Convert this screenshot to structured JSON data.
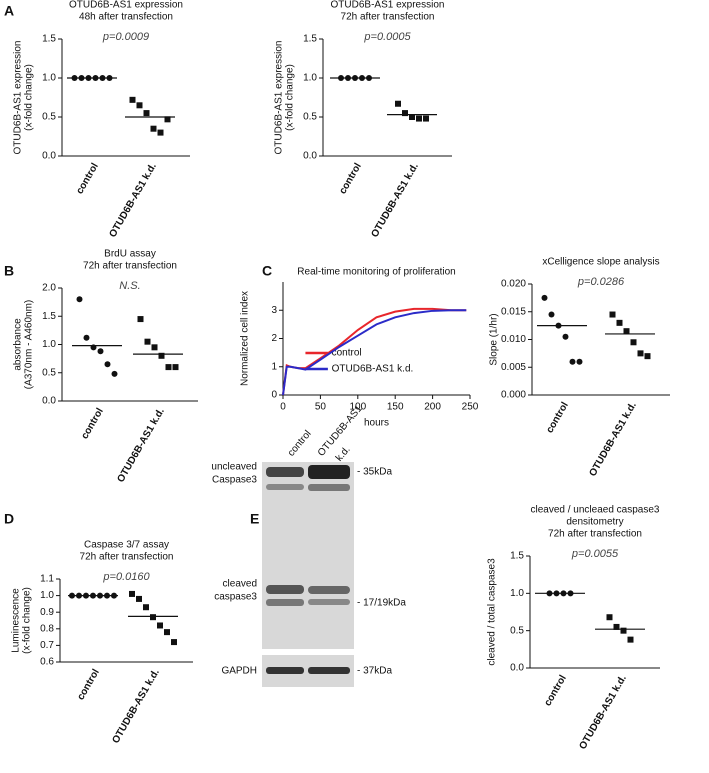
{
  "panel_labels": [
    "A",
    "B",
    "C",
    "D",
    "E"
  ],
  "blot": {
    "lanes": [
      "control",
      "OTUD6B-AS1",
      "k.d."
    ],
    "rows": [
      "uncleaved",
      "Caspase3",
      "cleaved",
      "caspase3",
      "GAPDH"
    ],
    "sizes": [
      "- 35kDa",
      "- 17/19kDa",
      "- 37kDa"
    ]
  },
  "chart_data": [
    {
      "type": "dotplot",
      "title": "OTUD6B-AS1 expression",
      "subtitle": "48h after transfection",
      "ylabel": [
        "OTUD6B-AS1 expression",
        "(x-fold change)"
      ],
      "annotation": "p=0.0009",
      "categories": [
        "control",
        "OTUD6B-AS1 k.d."
      ],
      "markers": [
        "circle",
        "square"
      ],
      "points": [
        [
          1,
          1,
          1,
          1,
          1,
          1
        ],
        [
          0.72,
          0.65,
          0.55,
          0.35,
          0.3,
          0.47
        ]
      ],
      "means": [
        1.0,
        0.5
      ],
      "ylim": [
        0,
        1.5
      ],
      "yticks": [
        {
          "value": 0,
          "label": "0.0"
        },
        0.5,
        {
          "value": 1,
          "label": "1.0"
        },
        1.5
      ]
    },
    {
      "type": "dotplot",
      "title": "OTUD6B-AS1 expression",
      "subtitle": "72h after transfection",
      "ylabel": [
        "OTUD6B-AS1 expression",
        "(x-fold change)"
      ],
      "annotation": "p=0.0005",
      "categories": [
        "control",
        "OTUD6B-AS1 k.d."
      ],
      "markers": [
        "circle",
        "square"
      ],
      "points": [
        [
          1,
          1,
          1,
          1,
          1
        ],
        [
          0.67,
          0.55,
          0.5,
          0.48,
          0.48
        ]
      ],
      "means": [
        1.0,
        0.53
      ],
      "ylim": [
        0,
        1.5
      ],
      "yticks": [
        {
          "value": 0,
          "label": "0.0"
        },
        0.5,
        {
          "value": 1,
          "label": "1.0"
        },
        1.5
      ]
    },
    {
      "type": "dotplot",
      "title": "BrdU assay",
      "subtitle": "72h after transfection",
      "ylabel": [
        "absorbance",
        "(A370nm - A460nm)"
      ],
      "annotation": "N.S.",
      "categories": [
        "control",
        "OTUD6B-AS1 k.d."
      ],
      "markers": [
        "circle",
        "square"
      ],
      "points": [
        [
          1.8,
          1.12,
          0.95,
          0.88,
          0.65,
          0.48
        ],
        [
          1.45,
          1.05,
          0.95,
          0.8,
          0.6,
          0.6
        ]
      ],
      "means": [
        0.98,
        0.83
      ],
      "ylim": [
        0,
        2
      ],
      "yticks": [
        {
          "value": 0,
          "label": "0.0"
        },
        0.5,
        {
          "value": 1,
          "label": "1.0"
        },
        1.5,
        {
          "value": 2,
          "label": "2.0"
        }
      ]
    },
    {
      "type": "line",
      "title": "Real-time monitoring of proliferation",
      "xlabel": "hours",
      "ylabel": [
        "Normalized cell index"
      ],
      "x": [
        0,
        5,
        10,
        20,
        30,
        50,
        75,
        100,
        125,
        150,
        175,
        200,
        225,
        245
      ],
      "series": [
        {
          "name": "control",
          "color": "#e8262b",
          "values": [
            0,
            1.05,
            1.0,
            0.95,
            0.95,
            1.3,
            1.75,
            2.3,
            2.75,
            2.95,
            3.05,
            3.05,
            3.0,
            3.0
          ]
        },
        {
          "name": "OTUD6B-AS1 k.d.",
          "color": "#2b2bc8",
          "values": [
            0,
            1.0,
            1.0,
            0.95,
            0.9,
            1.25,
            1.7,
            2.1,
            2.5,
            2.75,
            2.9,
            2.98,
            3.0,
            3.0
          ]
        }
      ],
      "xlim": [
        0,
        250
      ],
      "xticks": [
        0,
        50,
        100,
        150,
        200,
        250
      ],
      "ylim": [
        0,
        4
      ],
      "yticks": [
        0,
        1,
        2,
        3
      ],
      "legend": "lower right"
    },
    {
      "type": "dotplot",
      "title": "xCelligence slope analysis",
      "ylabel": [
        "Slope (1/hr)"
      ],
      "annotation": "p=0.0286",
      "categories": [
        "control",
        "OTUD6B-AS1 k.d."
      ],
      "markers": [
        "circle",
        "square"
      ],
      "points": [
        [
          0.0175,
          0.0145,
          0.0125,
          0.0105,
          0.006,
          0.006
        ],
        [
          0.0145,
          0.013,
          0.0115,
          0.0095,
          0.0075,
          0.007
        ]
      ],
      "means": [
        0.0125,
        0.011
      ],
      "ylim": [
        0,
        0.02
      ],
      "yticks": [
        {
          "value": 0,
          "label": "0.000"
        },
        {
          "value": 0.005,
          "label": "0.005"
        },
        {
          "value": 0.01,
          "label": "0.010"
        },
        {
          "value": 0.015,
          "label": "0.015"
        },
        {
          "value": 0.02,
          "label": "0.020"
        }
      ]
    },
    {
      "type": "dotplot",
      "title": "Caspase 3/7 assay",
      "subtitle": "72h after transfection",
      "ylabel": [
        "Luminescence",
        "(x-fold change)"
      ],
      "annotation": "p=0.0160",
      "categories": [
        "control",
        "OTUD6B-AS1 k.d."
      ],
      "markers": [
        "circle",
        "square"
      ],
      "points": [
        [
          1,
          1,
          1,
          1,
          1,
          1,
          1
        ],
        [
          1.01,
          0.98,
          0.93,
          0.87,
          0.82,
          0.78,
          0.72
        ]
      ],
      "means": [
        1.0,
        0.875
      ],
      "ylim": [
        0.6,
        1.1
      ],
      "yticks": [
        0.6,
        0.7,
        0.8,
        0.9,
        {
          "value": 1,
          "label": "1.0"
        },
        1.1
      ]
    },
    {
      "type": "dotplot",
      "title": "cleaved / uncleaed caspase3",
      "subtitle": "densitometry",
      "subtitle2": "72h after transfection",
      "ylabel": [
        "cleaved / total caspase3"
      ],
      "annotation": "p=0.0055",
      "categories": [
        "control",
        "OTUD6B-AS1 k.d."
      ],
      "markers": [
        "circle",
        "square"
      ],
      "points": [
        [
          1,
          1,
          1,
          1
        ],
        [
          0.68,
          0.55,
          0.5,
          0.38
        ]
      ],
      "means": [
        1.0,
        0.52
      ],
      "ylim": [
        0,
        1.5
      ],
      "yticks": [
        {
          "value": 0,
          "label": "0.0"
        },
        0.5,
        {
          "value": 1,
          "label": "1.0"
        },
        1.5
      ]
    }
  ]
}
